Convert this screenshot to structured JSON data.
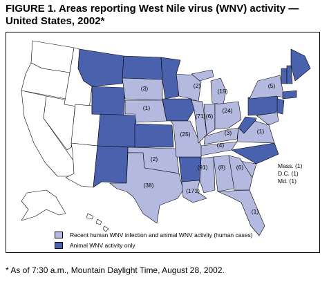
{
  "title_line1": "FIGURE 1. Areas reporting West Nile virus (WNV) activity —",
  "title_line2": "United States, 2002*",
  "colors": {
    "human_and_animal": "#b4b9e0",
    "animal_only": "#4a61ad",
    "none": "#ffffff",
    "border": "#000000"
  },
  "state_case_labels": [
    {
      "state": "SD",
      "text": "(3)"
    },
    {
      "state": "NE",
      "text": "(1)"
    },
    {
      "state": "OK",
      "text": "(2)"
    },
    {
      "state": "TX",
      "text": "(38)"
    },
    {
      "state": "MO",
      "text": "(25)"
    },
    {
      "state": "WI",
      "text": "(2)"
    },
    {
      "state": "IL",
      "text": "(71)"
    },
    {
      "state": "IN",
      "text": "(6)"
    },
    {
      "state": "MI",
      "text": "(15)"
    },
    {
      "state": "OH",
      "text": "(24)"
    },
    {
      "state": "KY",
      "text": "(3)"
    },
    {
      "state": "TN",
      "text": "(4)"
    },
    {
      "state": "MS",
      "text": "(91)"
    },
    {
      "state": "AL",
      "text": "(8)"
    },
    {
      "state": "GA",
      "text": "(6)"
    },
    {
      "state": "LA",
      "text": "(171)"
    },
    {
      "state": "FL",
      "text": "(1)"
    },
    {
      "state": "VA",
      "text": "(1)"
    },
    {
      "state": "NY",
      "text": "(5)"
    }
  ],
  "side_note_lines": [
    "Mass. (1)",
    "D.C. (1)",
    "Md. (1)"
  ],
  "legend": [
    {
      "label": "Recent human WNV infection and animal WNV activity (human cases)",
      "color": "#b4b9e0"
    },
    {
      "label": "Animal WNV activity only",
      "color": "#4a61ad"
    }
  ],
  "footnote": "* As of 7:30 a.m., Mountain Daylight Time, August 28, 2002."
}
